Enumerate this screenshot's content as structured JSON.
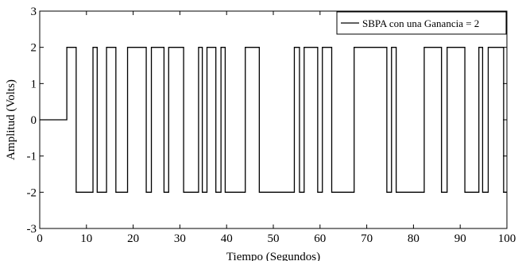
{
  "chart_data": {
    "type": "line",
    "xlabel": "Tiempo (Segundos)",
    "ylabel": "Amplitud (Volts)",
    "xlim": [
      0,
      100
    ],
    "ylim": [
      -3,
      3
    ],
    "x_ticks": [
      "0",
      "10",
      "20",
      "30",
      "40",
      "50",
      "60",
      "70",
      "80",
      "90",
      "100"
    ],
    "y_ticks": [
      "3",
      "2",
      "1",
      "0",
      "-1",
      "-2",
      "-3"
    ],
    "grid": false,
    "legend_position": "top-right",
    "series": [
      {
        "name": "SBPA con una Ganancia = 2",
        "color": "#000000",
        "step_changes": [
          [
            0,
            0
          ],
          [
            5.8,
            2
          ],
          [
            7.8,
            -2
          ],
          [
            11.4,
            2
          ],
          [
            12.3,
            -2
          ],
          [
            14.3,
            2
          ],
          [
            16.3,
            -2
          ],
          [
            18.8,
            2
          ],
          [
            22.8,
            -2
          ],
          [
            23.9,
            2
          ],
          [
            26.6,
            -2
          ],
          [
            27.6,
            2
          ],
          [
            30.8,
            -2
          ],
          [
            34,
            2
          ],
          [
            34.8,
            -2
          ],
          [
            35.8,
            2
          ],
          [
            37.7,
            -2
          ],
          [
            38.8,
            2
          ],
          [
            39.7,
            -2
          ],
          [
            44,
            2
          ],
          [
            47,
            -2
          ],
          [
            54.5,
            2
          ],
          [
            55.6,
            -2
          ],
          [
            56.6,
            2
          ],
          [
            59.5,
            -2
          ],
          [
            60.5,
            2
          ],
          [
            62.5,
            -2
          ],
          [
            67.3,
            2
          ],
          [
            74.3,
            -2
          ],
          [
            75.3,
            2
          ],
          [
            76.3,
            -2
          ],
          [
            82.3,
            2
          ],
          [
            86,
            -2
          ],
          [
            87.2,
            2
          ],
          [
            91,
            -2
          ],
          [
            94,
            2
          ],
          [
            94.8,
            -2
          ],
          [
            96,
            2
          ],
          [
            99.3,
            -2
          ],
          [
            100,
            -2
          ]
        ]
      }
    ]
  }
}
